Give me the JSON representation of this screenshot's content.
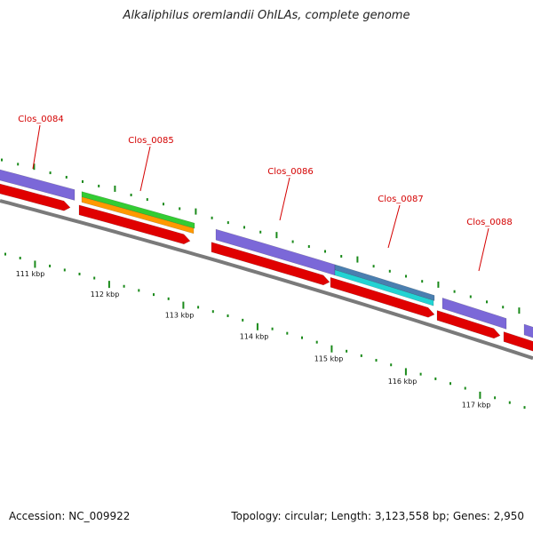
{
  "title": "Alkaliphilus oremlandii OhILAs, complete genome",
  "footer": {
    "accession": "Accession: NC_009922",
    "summary": "Topology: circular; Length: 3,123,558 bp; Genes: 2,950"
  },
  "colors": {
    "backbone": "#7a7a7a",
    "cds_forward": "#e00000",
    "gene_purple": "#7b68d8",
    "gene_green": "#33cc33",
    "gene_orange": "#ff9900",
    "gene_steelblue": "#4a7fb0",
    "gene_cyan": "#22d3d3",
    "tick": "#1a8a1a",
    "label": "#d40000"
  },
  "genes": [
    {
      "name": "Clos_0084"
    },
    {
      "name": "Clos_0085"
    },
    {
      "name": "Clos_0086"
    },
    {
      "name": "Clos_0087"
    },
    {
      "name": "Clos_0088"
    }
  ],
  "scale_labels": [
    "111 kbp",
    "112 kbp",
    "113 kbp",
    "114 kbp",
    "115 kbp",
    "116 kbp",
    "117 kbp"
  ]
}
